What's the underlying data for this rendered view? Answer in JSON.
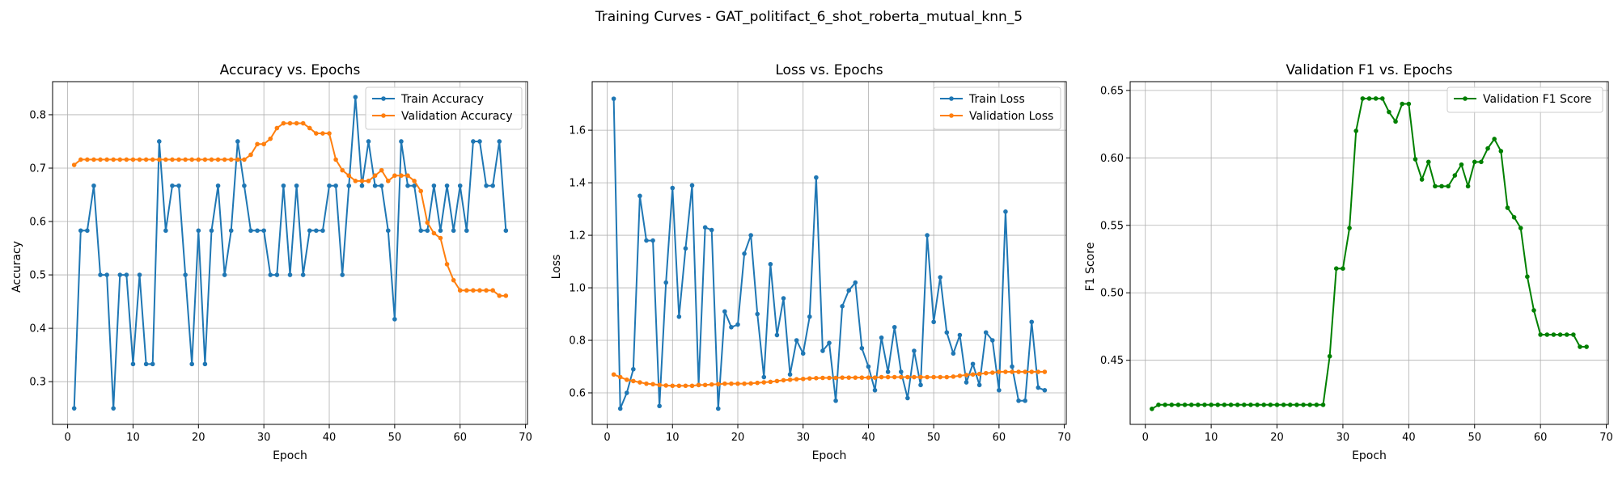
{
  "suptitle": "Training Curves - GAT_politifact_6_shot_roberta_mutual_knn_5",
  "chart_data": [
    {
      "type": "line",
      "title": "Accuracy vs. Epochs",
      "xlabel": "Epoch",
      "ylabel": "Accuracy",
      "xlim": [
        -2.3,
        70.3
      ],
      "ylim": [
        0.22,
        0.862
      ],
      "xticks": [
        0,
        10,
        20,
        30,
        40,
        50,
        60,
        70
      ],
      "yticks": [
        0.3,
        0.4,
        0.5,
        0.6,
        0.7,
        0.8
      ],
      "ytick_labels": [
        "0.3",
        "0.4",
        "0.5",
        "0.6",
        "0.7",
        "0.8"
      ],
      "grid": true,
      "legend": "top-right",
      "series": [
        {
          "name": "Train Accuracy",
          "color": "#1f77b4",
          "x": [
            1,
            2,
            3,
            4,
            5,
            6,
            7,
            8,
            9,
            10,
            11,
            12,
            13,
            14,
            15,
            16,
            17,
            18,
            19,
            20,
            21,
            22,
            23,
            24,
            25,
            26,
            27,
            28,
            29,
            30,
            31,
            32,
            33,
            34,
            35,
            36,
            37,
            38,
            39,
            40,
            41,
            42,
            43,
            44,
            45,
            46,
            47,
            48,
            49,
            50,
            51,
            52,
            53,
            54,
            55,
            56,
            57,
            58,
            59,
            60,
            61,
            62,
            63,
            64,
            65,
            66,
            67
          ],
          "y": [
            0.25,
            0.583,
            0.583,
            0.667,
            0.5,
            0.5,
            0.25,
            0.5,
            0.5,
            0.333,
            0.5,
            0.333,
            0.333,
            0.75,
            0.583,
            0.667,
            0.667,
            0.5,
            0.333,
            0.583,
            0.333,
            0.583,
            0.667,
            0.5,
            0.583,
            0.75,
            0.667,
            0.583,
            0.583,
            0.583,
            0.5,
            0.5,
            0.667,
            0.5,
            0.667,
            0.5,
            0.583,
            0.583,
            0.583,
            0.667,
            0.667,
            0.5,
            0.667,
            0.833,
            0.667,
            0.75,
            0.667,
            0.667,
            0.583,
            0.417,
            0.75,
            0.667,
            0.667,
            0.583,
            0.583,
            0.667,
            0.583,
            0.667,
            0.583,
            0.667,
            0.583,
            0.75,
            0.75,
            0.667,
            0.667,
            0.75,
            0.583
          ]
        },
        {
          "name": "Validation Accuracy",
          "color": "#ff7f0e",
          "x": [
            1,
            2,
            3,
            4,
            5,
            6,
            7,
            8,
            9,
            10,
            11,
            12,
            13,
            14,
            15,
            16,
            17,
            18,
            19,
            20,
            21,
            22,
            23,
            24,
            25,
            26,
            27,
            28,
            29,
            30,
            31,
            32,
            33,
            34,
            35,
            36,
            37,
            38,
            39,
            40,
            41,
            42,
            43,
            44,
            45,
            46,
            47,
            48,
            49,
            50,
            51,
            52,
            53,
            54,
            55,
            56,
            57,
            58,
            59,
            60,
            61,
            62,
            63,
            64,
            65,
            66,
            67
          ],
          "y": [
            0.706,
            0.716,
            0.716,
            0.716,
            0.716,
            0.716,
            0.716,
            0.716,
            0.716,
            0.716,
            0.716,
            0.716,
            0.716,
            0.716,
            0.716,
            0.716,
            0.716,
            0.716,
            0.716,
            0.716,
            0.716,
            0.716,
            0.716,
            0.716,
            0.716,
            0.716,
            0.716,
            0.725,
            0.745,
            0.745,
            0.755,
            0.775,
            0.784,
            0.784,
            0.784,
            0.784,
            0.775,
            0.765,
            0.765,
            0.765,
            0.716,
            0.696,
            0.686,
            0.676,
            0.676,
            0.676,
            0.686,
            0.696,
            0.676,
            0.686,
            0.686,
            0.686,
            0.676,
            0.657,
            0.598,
            0.578,
            0.569,
            0.52,
            0.49,
            0.471,
            0.471,
            0.471,
            0.471,
            0.471,
            0.471,
            0.461,
            0.461
          ]
        }
      ]
    },
    {
      "type": "line",
      "title": "Loss vs. Epochs",
      "xlabel": "Epoch",
      "ylabel": "Loss",
      "xlim": [
        -2.3,
        70.3
      ],
      "ylim": [
        0.48,
        1.785
      ],
      "xticks": [
        0,
        10,
        20,
        30,
        40,
        50,
        60,
        70
      ],
      "yticks": [
        0.6,
        0.8,
        1.0,
        1.2,
        1.4,
        1.6
      ],
      "ytick_labels": [
        "0.6",
        "0.8",
        "1.0",
        "1.2",
        "1.4",
        "1.6"
      ],
      "grid": true,
      "legend": "top-right",
      "series": [
        {
          "name": "Train Loss",
          "color": "#1f77b4",
          "x": [
            1,
            2,
            3,
            4,
            5,
            6,
            7,
            8,
            9,
            10,
            11,
            12,
            13,
            14,
            15,
            16,
            17,
            18,
            19,
            20,
            21,
            22,
            23,
            24,
            25,
            26,
            27,
            28,
            29,
            30,
            31,
            32,
            33,
            34,
            35,
            36,
            37,
            38,
            39,
            40,
            41,
            42,
            43,
            44,
            45,
            46,
            47,
            48,
            49,
            50,
            51,
            52,
            53,
            54,
            55,
            56,
            57,
            58,
            59,
            60,
            61,
            62,
            63,
            64,
            65,
            66,
            67
          ],
          "y": [
            1.72,
            0.54,
            0.6,
            0.69,
            1.35,
            1.18,
            1.18,
            0.55,
            1.02,
            1.38,
            0.89,
            1.15,
            1.39,
            0.63,
            1.23,
            1.22,
            0.54,
            0.91,
            0.85,
            0.86,
            1.13,
            1.2,
            0.9,
            0.66,
            1.09,
            0.82,
            0.96,
            0.67,
            0.8,
            0.75,
            0.89,
            1.42,
            0.76,
            0.79,
            0.57,
            0.93,
            0.99,
            1.02,
            0.77,
            0.7,
            0.61,
            0.81,
            0.68,
            0.85,
            0.68,
            0.58,
            0.76,
            0.63,
            1.2,
            0.87,
            1.04,
            0.83,
            0.75,
            0.82,
            0.64,
            0.71,
            0.63,
            0.83,
            0.8,
            0.61,
            1.29,
            0.7,
            0.57,
            0.57,
            0.87,
            0.62,
            0.61
          ]
        },
        {
          "name": "Validation Loss",
          "color": "#ff7f0e",
          "x": [
            1,
            2,
            3,
            4,
            5,
            6,
            7,
            8,
            9,
            10,
            11,
            12,
            13,
            14,
            15,
            16,
            17,
            18,
            19,
            20,
            21,
            22,
            23,
            24,
            25,
            26,
            27,
            28,
            29,
            30,
            31,
            32,
            33,
            34,
            35,
            36,
            37,
            38,
            39,
            40,
            41,
            42,
            43,
            44,
            45,
            46,
            47,
            48,
            49,
            50,
            51,
            52,
            53,
            54,
            55,
            56,
            57,
            58,
            59,
            60,
            61,
            62,
            63,
            64,
            65,
            66,
            67
          ],
          "y": [
            0.67,
            0.66,
            0.65,
            0.645,
            0.64,
            0.635,
            0.633,
            0.63,
            0.628,
            0.627,
            0.627,
            0.627,
            0.627,
            0.63,
            0.63,
            0.632,
            0.633,
            0.635,
            0.635,
            0.635,
            0.635,
            0.636,
            0.638,
            0.64,
            0.642,
            0.645,
            0.648,
            0.65,
            0.652,
            0.653,
            0.655,
            0.656,
            0.657,
            0.657,
            0.657,
            0.658,
            0.658,
            0.658,
            0.658,
            0.658,
            0.658,
            0.66,
            0.66,
            0.66,
            0.66,
            0.66,
            0.66,
            0.66,
            0.66,
            0.66,
            0.66,
            0.66,
            0.662,
            0.665,
            0.668,
            0.67,
            0.672,
            0.675,
            0.677,
            0.68,
            0.68,
            0.68,
            0.68,
            0.68,
            0.68,
            0.68,
            0.68
          ]
        }
      ]
    },
    {
      "type": "line",
      "title": "Validation F1 vs. Epochs",
      "xlabel": "Epoch",
      "ylabel": "F1 Score",
      "xlim": [
        -2.3,
        70.3
      ],
      "ylim": [
        0.4025,
        0.6565
      ],
      "xticks": [
        0,
        10,
        20,
        30,
        40,
        50,
        60,
        70
      ],
      "yticks": [
        0.45,
        0.5,
        0.55,
        0.6,
        0.65
      ],
      "ytick_labels": [
        "0.45",
        "0.50",
        "0.55",
        "0.60",
        "0.65"
      ],
      "grid": true,
      "legend": "top-right",
      "series": [
        {
          "name": "Validation F1 Score",
          "color": "#008000",
          "x": [
            1,
            2,
            3,
            4,
            5,
            6,
            7,
            8,
            9,
            10,
            11,
            12,
            13,
            14,
            15,
            16,
            17,
            18,
            19,
            20,
            21,
            22,
            23,
            24,
            25,
            26,
            27,
            28,
            29,
            30,
            31,
            32,
            33,
            34,
            35,
            36,
            37,
            38,
            39,
            40,
            41,
            42,
            43,
            44,
            45,
            46,
            47,
            48,
            49,
            50,
            51,
            52,
            53,
            54,
            55,
            56,
            57,
            58,
            59,
            60,
            61,
            62,
            63,
            64,
            65,
            66,
            67
          ],
          "y": [
            0.414,
            0.417,
            0.417,
            0.417,
            0.417,
            0.417,
            0.417,
            0.417,
            0.417,
            0.417,
            0.417,
            0.417,
            0.417,
            0.417,
            0.417,
            0.417,
            0.417,
            0.417,
            0.417,
            0.417,
            0.417,
            0.417,
            0.417,
            0.417,
            0.417,
            0.417,
            0.417,
            0.453,
            0.518,
            0.518,
            0.548,
            0.62,
            0.644,
            0.644,
            0.644,
            0.644,
            0.634,
            0.627,
            0.64,
            0.64,
            0.599,
            0.584,
            0.597,
            0.579,
            0.579,
            0.579,
            0.587,
            0.595,
            0.579,
            0.597,
            0.597,
            0.607,
            0.614,
            0.605,
            0.563,
            0.556,
            0.548,
            0.512,
            0.487,
            0.469,
            0.469,
            0.469,
            0.469,
            0.469,
            0.469,
            0.46,
            0.46
          ]
        }
      ]
    }
  ]
}
